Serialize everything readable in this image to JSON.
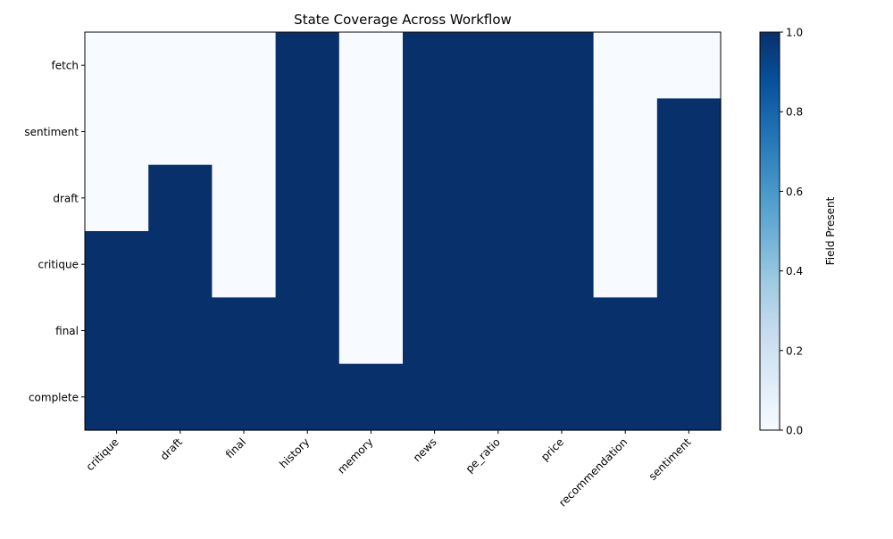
{
  "chart_data": {
    "type": "heatmap",
    "title": "State Coverage Across Workflow",
    "xlabel": "",
    "ylabel": "",
    "columns": [
      "critique",
      "draft",
      "final",
      "history",
      "memory",
      "news",
      "pe_ratio",
      "price",
      "recommendation",
      "sentiment"
    ],
    "rows": [
      "fetch",
      "sentiment",
      "draft",
      "critique",
      "final",
      "complete"
    ],
    "values": [
      [
        0,
        0,
        0,
        1,
        0,
        1,
        1,
        1,
        0,
        0
      ],
      [
        0,
        0,
        0,
        1,
        0,
        1,
        1,
        1,
        0,
        1
      ],
      [
        0,
        1,
        0,
        1,
        0,
        1,
        1,
        1,
        0,
        1
      ],
      [
        1,
        1,
        0,
        1,
        0,
        1,
        1,
        1,
        0,
        1
      ],
      [
        1,
        1,
        1,
        1,
        0,
        1,
        1,
        1,
        1,
        1
      ],
      [
        1,
        1,
        1,
        1,
        1,
        1,
        1,
        1,
        1,
        1
      ]
    ],
    "colormap": "Blues",
    "colors": {
      "low": "#f7fbff",
      "high": "#08306b"
    },
    "colorbar": {
      "label": "Field Present",
      "range": [
        0,
        1
      ],
      "ticks": [
        "0.0",
        "0.2",
        "0.4",
        "0.6",
        "0.8",
        "1.0"
      ]
    },
    "grid": false
  }
}
